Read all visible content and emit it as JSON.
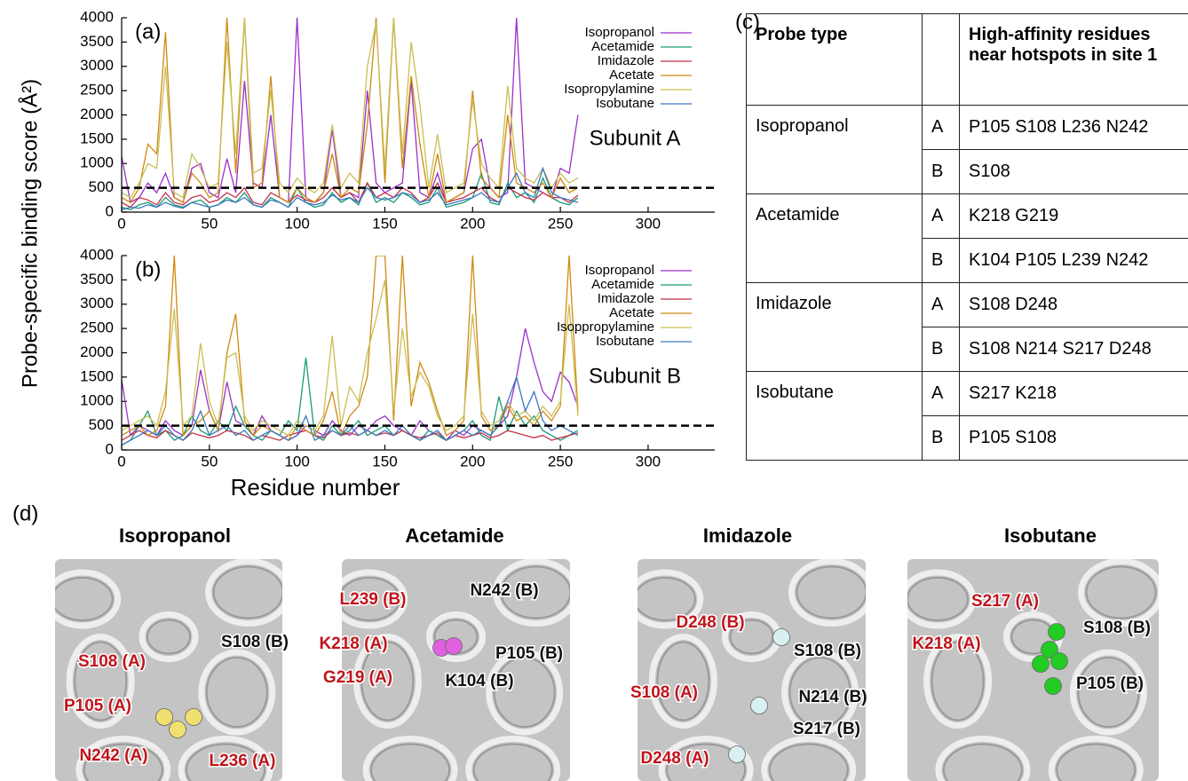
{
  "chart_data": [
    {
      "type": "line",
      "panel_label": "(a)",
      "annotation": "Subunit A",
      "ylabel": "Probe-specific binding score (Å²)",
      "x": [
        0,
        5,
        10,
        15,
        20,
        25,
        30,
        35,
        40,
        45,
        50,
        55,
        60,
        65,
        70,
        75,
        80,
        85,
        90,
        95,
        100,
        105,
        110,
        115,
        120,
        125,
        130,
        135,
        140,
        145,
        150,
        155,
        160,
        165,
        170,
        175,
        180,
        185,
        190,
        195,
        200,
        205,
        210,
        215,
        220,
        225,
        230,
        235,
        240,
        245,
        250,
        255,
        260
      ],
      "xlim": [
        0,
        340
      ],
      "xticks": [
        0,
        50,
        100,
        150,
        200,
        250,
        300
      ],
      "ylim": [
        0,
        4000
      ],
      "yticks": [
        0,
        500,
        1000,
        1500,
        2000,
        2500,
        3000,
        3500,
        4000
      ],
      "threshold": 500,
      "legend": "upper right",
      "series": [
        {
          "name": "Isopropanol",
          "color": "#9b30c8",
          "values": [
            1150,
            200,
            300,
            600,
            400,
            800,
            300,
            200,
            900,
            1000,
            400,
            300,
            1100,
            400,
            2700,
            600,
            500,
            2000,
            300,
            200,
            4000,
            300,
            200,
            400,
            1700,
            300,
            400,
            300,
            2500,
            600,
            400,
            500,
            600,
            2700,
            400,
            300,
            800,
            200,
            300,
            400,
            1300,
            1500,
            500,
            300,
            400,
            4000,
            600,
            500,
            400,
            300,
            900,
            800,
            2000
          ]
        },
        {
          "name": "Acetamide",
          "color": "#1a9a7a",
          "values": [
            100,
            50,
            150,
            200,
            100,
            300,
            150,
            100,
            200,
            250,
            100,
            150,
            300,
            200,
            400,
            150,
            100,
            300,
            200,
            100,
            500,
            200,
            100,
            150,
            400,
            200,
            300,
            150,
            600,
            200,
            300,
            200,
            400,
            300,
            150,
            200,
            500,
            100,
            150,
            200,
            300,
            800,
            200,
            150,
            600,
            300,
            400,
            200,
            700,
            300,
            200,
            150,
            300
          ]
        },
        {
          "name": "Imidazole",
          "color": "#c43048",
          "values": [
            200,
            100,
            300,
            250,
            150,
            400,
            200,
            150,
            300,
            350,
            200,
            250,
            400,
            300,
            500,
            200,
            150,
            400,
            300,
            200,
            350,
            250,
            200,
            300,
            500,
            300,
            400,
            200,
            600,
            300,
            400,
            300,
            500,
            400,
            200,
            300,
            600,
            200,
            250,
            300,
            400,
            500,
            300,
            200,
            500,
            400,
            300,
            250,
            400,
            300,
            300,
            200,
            350
          ]
        },
        {
          "name": "Acetate",
          "color": "#d08a10",
          "values": [
            300,
            200,
            500,
            1400,
            1200,
            3700,
            300,
            200,
            800,
            600,
            300,
            400,
            4000,
            800,
            4000,
            500,
            600,
            2800,
            300,
            200,
            500,
            300,
            200,
            400,
            1200,
            300,
            500,
            400,
            1800,
            4000,
            600,
            4000,
            900,
            2800,
            1400,
            300,
            1200,
            200,
            300,
            400,
            2500,
            700,
            500,
            300,
            2000,
            600,
            500,
            400,
            600,
            300,
            700,
            400,
            500
          ]
        },
        {
          "name": "Isopropylamine",
          "color": "#c8bf55",
          "values": [
            400,
            300,
            600,
            1000,
            900,
            3000,
            400,
            300,
            1200,
            900,
            500,
            600,
            3500,
            1200,
            4000,
            800,
            900,
            2500,
            600,
            400,
            700,
            500,
            400,
            600,
            1800,
            500,
            800,
            600,
            3000,
            3900,
            900,
            4000,
            1200,
            3500,
            2200,
            500,
            1600,
            400,
            500,
            600,
            2300,
            1000,
            700,
            500,
            2600,
            900,
            700,
            600,
            900,
            500,
            800,
            600,
            700
          ]
        },
        {
          "name": "Isobutane",
          "color": "#3a78c0",
          "values": [
            50,
            100,
            80,
            150,
            100,
            200,
            120,
            80,
            200,
            150,
            100,
            150,
            250,
            200,
            300,
            150,
            100,
            250,
            200,
            100,
            300,
            200,
            150,
            200,
            350,
            250,
            300,
            200,
            500,
            300,
            250,
            300,
            400,
            350,
            200,
            250,
            400,
            150,
            200,
            250,
            300,
            400,
            250,
            200,
            500,
            800,
            400,
            300,
            900,
            400,
            300,
            250,
            200
          ]
        }
      ]
    },
    {
      "type": "line",
      "panel_label": "(b)",
      "annotation": "Subunit B",
      "xlabel": "Residue number",
      "x": [
        0,
        5,
        10,
        15,
        20,
        25,
        30,
        35,
        40,
        45,
        50,
        55,
        60,
        65,
        70,
        75,
        80,
        85,
        90,
        95,
        100,
        105,
        110,
        115,
        120,
        125,
        130,
        135,
        140,
        145,
        150,
        155,
        160,
        165,
        170,
        175,
        180,
        185,
        190,
        195,
        200,
        205,
        210,
        215,
        220,
        225,
        230,
        235,
        240,
        245,
        250,
        255,
        260
      ],
      "xlim": [
        0,
        340
      ],
      "xticks": [
        0,
        50,
        100,
        150,
        200,
        250,
        300
      ],
      "ylim": [
        0,
        4000
      ],
      "yticks": [
        0,
        500,
        1000,
        1500,
        2000,
        2500,
        3000,
        3500,
        4000
      ],
      "threshold": 500,
      "legend": "upper right",
      "series": [
        {
          "name": "Isopropanol",
          "color": "#9b30c8",
          "values": [
            1450,
            300,
            500,
            400,
            300,
            600,
            400,
            300,
            500,
            1650,
            800,
            400,
            1400,
            600,
            500,
            300,
            700,
            400,
            300,
            200,
            300,
            500,
            400,
            300,
            600,
            400,
            300,
            500,
            400,
            600,
            700,
            500,
            400,
            300,
            600,
            400,
            300,
            200,
            400,
            300,
            500,
            400,
            300,
            500,
            700,
            1500,
            2500,
            1800,
            1200,
            1000,
            1600,
            1400,
            900
          ]
        },
        {
          "name": "Acetamide",
          "color": "#1a9a7a",
          "values": [
            100,
            200,
            500,
            800,
            300,
            400,
            200,
            300,
            700,
            400,
            300,
            600,
            400,
            900,
            500,
            300,
            200,
            400,
            300,
            600,
            400,
            1900,
            300,
            200,
            500,
            300,
            400,
            600,
            300,
            400,
            500,
            300,
            400,
            300,
            200,
            400,
            300,
            200,
            300,
            400,
            600,
            300,
            200,
            1100,
            400,
            800,
            500,
            700,
            400,
            300,
            200,
            300,
            400
          ]
        },
        {
          "name": "Imidazole",
          "color": "#c43048",
          "values": [
            200,
            300,
            400,
            300,
            250,
            400,
            300,
            200,
            350,
            300,
            250,
            300,
            400,
            350,
            300,
            200,
            300,
            250,
            200,
            300,
            350,
            400,
            300,
            250,
            400,
            300,
            350,
            300,
            400,
            300,
            350,
            300,
            400,
            300,
            250,
            300,
            350,
            200,
            300,
            250,
            300,
            350,
            250,
            300,
            400,
            350,
            300,
            250,
            300,
            200,
            250,
            300,
            350
          ]
        },
        {
          "name": "Acetate",
          "color": "#d08a10",
          "values": [
            300,
            400,
            500,
            300,
            400,
            900,
            4000,
            300,
            500,
            600,
            800,
            400,
            2000,
            2800,
            600,
            300,
            500,
            400,
            300,
            200,
            500,
            400,
            300,
            600,
            1200,
            300,
            700,
            900,
            1500,
            4000,
            4000,
            600,
            4000,
            900,
            1800,
            1400,
            800,
            300,
            400,
            600,
            4000,
            700,
            400,
            500,
            900,
            600,
            700,
            500,
            800,
            600,
            900,
            4000,
            800
          ]
        },
        {
          "name": "Isoppropylamine",
          "color": "#c8bf55",
          "values": [
            400,
            500,
            600,
            700,
            500,
            1200,
            2900,
            500,
            700,
            2200,
            1000,
            500,
            1900,
            2000,
            700,
            400,
            600,
            500,
            400,
            300,
            600,
            500,
            400,
            700,
            2350,
            500,
            1300,
            1000,
            2000,
            2700,
            3500,
            800,
            2500,
            1100,
            1600,
            1300,
            700,
            400,
            500,
            700,
            2800,
            800,
            500,
            600,
            1000,
            700,
            800,
            600,
            900,
            700,
            1000,
            3000,
            700
          ]
        },
        {
          "name": "Isobutane",
          "color": "#3a78c0",
          "values": [
            100,
            200,
            300,
            400,
            300,
            500,
            300,
            200,
            400,
            800,
            300,
            400,
            500,
            300,
            400,
            200,
            300,
            400,
            300,
            200,
            300,
            700,
            200,
            300,
            400,
            300,
            500,
            300,
            400,
            300,
            400,
            300,
            500,
            300,
            200,
            300,
            400,
            200,
            300,
            400,
            300,
            400,
            300,
            500,
            1000,
            1500,
            800,
            1200,
            600,
            400,
            500,
            400,
            300
          ]
        }
      ]
    }
  ],
  "table": {
    "label": "(c)",
    "header": [
      "Probe type",
      "High-affinity residues near hotspots in site 1"
    ],
    "groups": [
      {
        "probe": "Isopropanol",
        "rows": [
          {
            "subunit": "A",
            "residues": "P105 S108 L236 N242"
          },
          {
            "subunit": "B",
            "residues": "S108"
          }
        ]
      },
      {
        "probe": "Acetamide",
        "rows": [
          {
            "subunit": "A",
            "residues": "K218 G219"
          },
          {
            "subunit": "B",
            "residues": "K104 P105 L239 N242"
          }
        ]
      },
      {
        "probe": "Imidazole",
        "rows": [
          {
            "subunit": "A",
            "residues": "S108 D248"
          },
          {
            "subunit": "B",
            "residues": "S108 N214 S217 D248"
          }
        ]
      },
      {
        "probe": "Isobutane",
        "rows": [
          {
            "subunit": "A",
            "residues": "S217 K218"
          },
          {
            "subunit": "B",
            "residues": "P105 S108"
          }
        ]
      }
    ]
  },
  "panels": {
    "label": "(d)",
    "items": [
      {
        "title": "Isopropanol",
        "labels": [
          {
            "text": "S108 (B)",
            "color": "#111111"
          },
          {
            "text": "S108 (A)",
            "color": "#c0141c"
          },
          {
            "text": "P105 (A)",
            "color": "#c0141c"
          },
          {
            "text": "N242 (A)",
            "color": "#c0141c"
          },
          {
            "text": "L236 (A)",
            "color": "#c0141c"
          }
        ]
      },
      {
        "title": "Acetamide",
        "labels": [
          {
            "text": "L239 (B)",
            "color": "#c0141c"
          },
          {
            "text": "N242 (B)",
            "color": "#111111"
          },
          {
            "text": "K218 (A)",
            "color": "#c0141c"
          },
          {
            "text": "P105 (B)",
            "color": "#111111"
          },
          {
            "text": "G219 (A)",
            "color": "#c0141c"
          },
          {
            "text": "K104 (B)",
            "color": "#111111"
          }
        ]
      },
      {
        "title": "Imidazole",
        "labels": [
          {
            "text": "D248 (B)",
            "color": "#c0141c"
          },
          {
            "text": "S108 (B)",
            "color": "#111111"
          },
          {
            "text": "S108 (A)",
            "color": "#c0141c"
          },
          {
            "text": "N214 (B)",
            "color": "#111111"
          },
          {
            "text": "S217 (B)",
            "color": "#111111"
          },
          {
            "text": "D248 (A)",
            "color": "#c0141c"
          }
        ]
      },
      {
        "title": "Isobutane",
        "labels": [
          {
            "text": "S217 (A)",
            "color": "#c0141c"
          },
          {
            "text": "K218 (A)",
            "color": "#c0141c"
          },
          {
            "text": "S108 (B)",
            "color": "#111111"
          },
          {
            "text": "P105 (B)",
            "color": "#111111"
          }
        ]
      }
    ]
  }
}
